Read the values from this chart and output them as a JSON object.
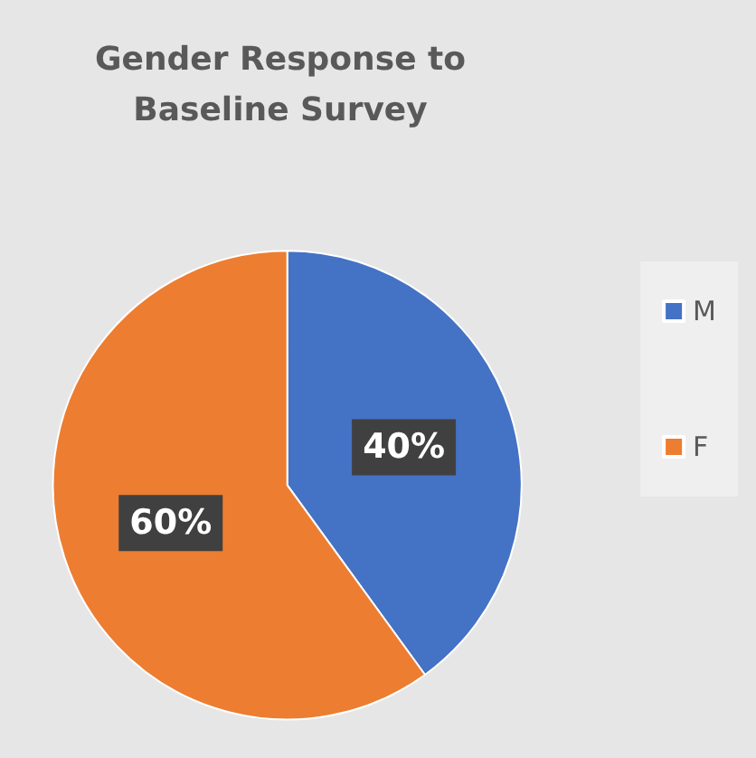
{
  "chart_data": {
    "type": "pie",
    "title": "Gender Response to\nBaseline Survey",
    "categories": [
      "M",
      "F"
    ],
    "values": [
      40,
      60
    ],
    "colors": [
      "#4472c4",
      "#ed7d31"
    ],
    "value_labels": [
      "40%",
      "60%"
    ],
    "legend": "right"
  }
}
